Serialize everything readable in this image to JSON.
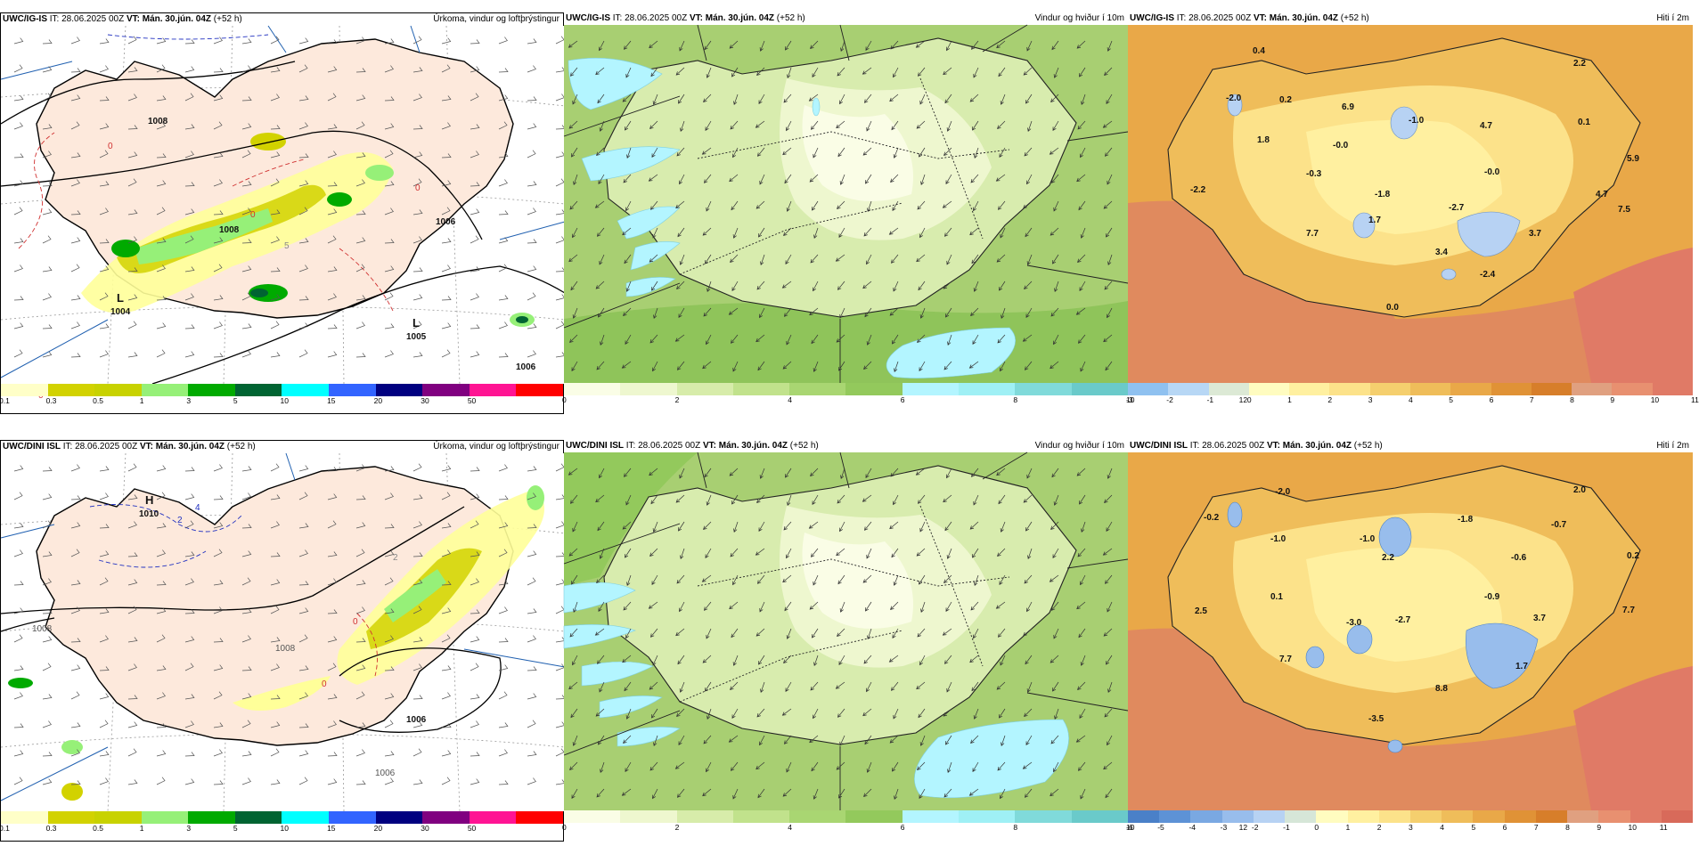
{
  "rows": [
    {
      "model": "UWC/IG-IS",
      "init": "IT: 28.06.2025 00Z",
      "vt_label": "VT:",
      "vt_value": "Mán. 30.jún. 04Z",
      "lead": "(+52 h)",
      "panels": {
        "precip": {
          "title": "Úrkoma, vindur og loftþrýstingur",
          "pressure_labels": [
            {
              "text": "1008",
              "kind": "contour"
            },
            {
              "text": "1006",
              "kind": "contour"
            },
            {
              "text": "1008",
              "kind": "contour"
            },
            {
              "text": "1006",
              "kind": "contour"
            },
            {
              "text": "L",
              "kind": "low"
            },
            {
              "text": "1004",
              "kind": "low"
            },
            {
              "text": "L",
              "kind": "low"
            },
            {
              "text": "1005",
              "kind": "low"
            }
          ],
          "temp_labels": [
            "0",
            "0",
            "0",
            "0",
            "5"
          ]
        },
        "wind": {
          "title": "Vindur og hviður í 10m"
        },
        "temp": {
          "title": "Hiti í 2m",
          "values": [
            "0.4",
            "2.2",
            "-2.0",
            "0.2",
            "6.9",
            "-1.0",
            "4.7",
            "0.1",
            "1.8",
            "-0.0",
            "5.9",
            "-0.3",
            "-0.0",
            "-2.2",
            "-1.8",
            "-2.7",
            "4.7",
            "7.5",
            "1.7",
            "7.7",
            "3.4",
            "3.7",
            "-2.4",
            "0.0"
          ]
        }
      }
    },
    {
      "model": "UWC/DINI ISL",
      "init": "IT: 28.06.2025 00Z",
      "vt_label": "VT:",
      "vt_value": "Mán. 30.jún. 04Z",
      "lead": "(+52 h)",
      "panels": {
        "precip": {
          "title": "Úrkoma, vindur og loftþrýstingur",
          "pressure_labels": [
            {
              "text": "H",
              "kind": "high"
            },
            {
              "text": "1010",
              "kind": "high"
            },
            {
              "text": "1008",
              "kind": "contour"
            },
            {
              "text": "1008",
              "kind": "contour"
            },
            {
              "text": "1006",
              "kind": "low"
            },
            {
              "text": "1006",
              "kind": "contour"
            }
          ],
          "temp_labels": [
            "4",
            "2",
            "0",
            "0",
            "2"
          ]
        },
        "wind": {
          "title": "Vindur og hviður í 10m"
        },
        "temp": {
          "title": "Hiti í 2m",
          "values": [
            "-2.0",
            "2.0",
            "-0.2",
            "-1.0",
            "-1.0",
            "-1.8",
            "-0.7",
            "2.2",
            "0.2",
            "-0.6",
            "0.1",
            "-0.9",
            "2.5",
            "-3.0",
            "-2.7",
            "3.7",
            "7.7",
            "7.7",
            "1.7",
            "8.8",
            "-3.5"
          ]
        }
      }
    }
  ],
  "colorbars": {
    "precip": {
      "colors": [
        "#ffffc8",
        "#d2d200",
        "#c8d200",
        "#96f078",
        "#00aa00",
        "#006432",
        "#00ffff",
        "#3264ff",
        "#000080",
        "#800080",
        "#ff1493",
        "#ff0000"
      ],
      "labels": [
        "0.1",
        "0.3",
        "0.5",
        "1",
        "3",
        "5",
        "10",
        "15",
        "20",
        "30",
        "50"
      ]
    },
    "wind": {
      "colors": [
        "#fafde6",
        "#eef7cf",
        "#d7ecaa",
        "#c1e28c",
        "#a9d672",
        "#93c95c",
        "#b3f5ff",
        "#9ff0f5",
        "#80dada",
        "#6acaca"
      ],
      "labels": [
        "0",
        "2",
        "4",
        "6",
        "8",
        "10",
        "12"
      ]
    },
    "temp_top": {
      "colors": [
        "#8fc1f0",
        "#b7d7f5",
        "#dce9d5",
        "#fffcc0",
        "#fff0a0",
        "#fce28a",
        "#f5cf6e",
        "#efbd5a",
        "#e9a848",
        "#e09236",
        "#d77e2a",
        "#e0a080",
        "#e89070",
        "#e07a66"
      ],
      "labels": [
        "-3",
        "-2",
        "-1",
        "0",
        "1",
        "2",
        "3",
        "4",
        "5",
        "6",
        "7",
        "8",
        "9",
        "10",
        "11"
      ]
    },
    "temp_bottom": {
      "colors": [
        "#4a80c8",
        "#5d92d6",
        "#7aa8e2",
        "#98bdec",
        "#b7d2f3",
        "#d6e6d8",
        "#fffcc0",
        "#fff0a0",
        "#fce28a",
        "#f5cf6e",
        "#efbd5a",
        "#e9a848",
        "#e09236",
        "#d77e2a",
        "#e0a080",
        "#e89070",
        "#e07a66",
        "#d86a5a"
      ],
      "labels": [
        "-6",
        "-5",
        "-4",
        "-3",
        "-2",
        "-1",
        "0",
        "1",
        "2",
        "3",
        "4",
        "5",
        "6",
        "7",
        "8",
        "9",
        "10",
        "11"
      ]
    }
  }
}
